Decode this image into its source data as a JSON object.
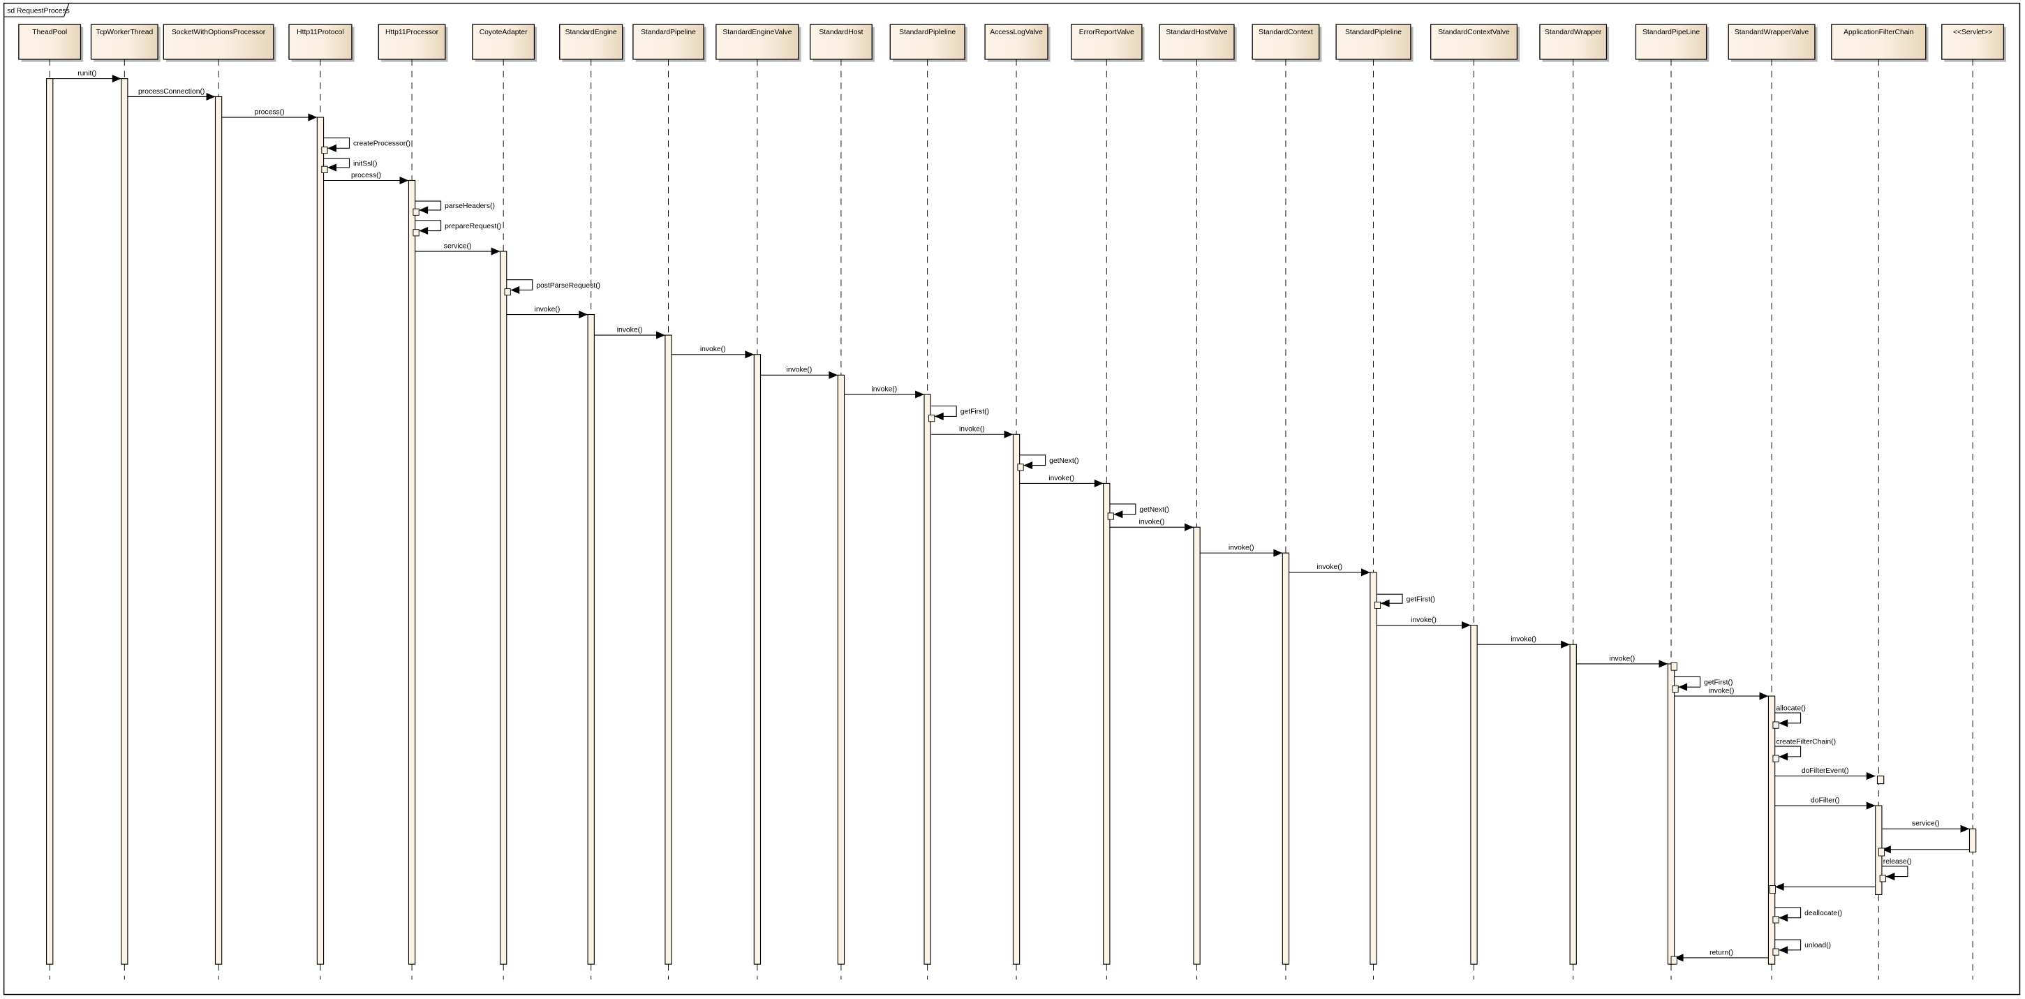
{
  "frame": {
    "title": "sd RequestProcess"
  },
  "colors": {
    "box_light": "#fcf4e8",
    "box_dark": "#e8d6bc",
    "activation": "#fbf3e6",
    "line": "#000000"
  },
  "lifelines": [
    "TheadPool",
    "TcpWorkerThread",
    "SocketWithOptionsProcessor",
    "Http11Protocol",
    "Http11Processor",
    "CoyoteAdapter",
    "StandardEngine",
    "StandardPipeline",
    "StandardEngineValve",
    "StandardHost",
    "StandardPipleline",
    "AccessLogValve",
    "ErrorReportValve",
    "StandardHostValve",
    "StandardContext",
    "StandardPipleline",
    "StandardContextValve",
    "StandardWrapper",
    "StandardPipeLine",
    "StandardWrapperValve",
    "ApplicationFilterChain",
    "<<Servlet>>"
  ],
  "messages": [
    {
      "from": 0,
      "to": 1,
      "label": "runit()"
    },
    {
      "from": 1,
      "to": 2,
      "label": "processConnection()"
    },
    {
      "from": 2,
      "to": 3,
      "label": "process()"
    },
    {
      "from": 3,
      "to": 3,
      "label": "createProcessor()"
    },
    {
      "from": 3,
      "to": 3,
      "label": "initSsl()"
    },
    {
      "from": 3,
      "to": 4,
      "label": "process()"
    },
    {
      "from": 4,
      "to": 4,
      "label": "parseHeaders()"
    },
    {
      "from": 4,
      "to": 4,
      "label": "prepareRequest()"
    },
    {
      "from": 4,
      "to": 5,
      "label": "service()"
    },
    {
      "from": 5,
      "to": 5,
      "label": "postParseRequest()"
    },
    {
      "from": 5,
      "to": 6,
      "label": "invoke()"
    },
    {
      "from": 6,
      "to": 7,
      "label": "invoke()"
    },
    {
      "from": 7,
      "to": 8,
      "label": "invoke()"
    },
    {
      "from": 8,
      "to": 9,
      "label": "invoke()"
    },
    {
      "from": 9,
      "to": 10,
      "label": "invoke()"
    },
    {
      "from": 10,
      "to": 10,
      "label": "getFirst()"
    },
    {
      "from": 10,
      "to": 11,
      "label": "invoke()"
    },
    {
      "from": 11,
      "to": 11,
      "label": "getNext()"
    },
    {
      "from": 11,
      "to": 12,
      "label": "invoke()"
    },
    {
      "from": 12,
      "to": 12,
      "label": "getNext()"
    },
    {
      "from": 12,
      "to": 13,
      "label": "invoke()"
    },
    {
      "from": 13,
      "to": 14,
      "label": "invoke()"
    },
    {
      "from": 14,
      "to": 15,
      "label": "invoke()"
    },
    {
      "from": 15,
      "to": 15,
      "label": "getFirst()"
    },
    {
      "from": 15,
      "to": 16,
      "label": "invoke()"
    },
    {
      "from": 16,
      "to": 17,
      "label": "invoke()"
    },
    {
      "from": 17,
      "to": 18,
      "label": "invoke()"
    },
    {
      "from": 18,
      "to": 18,
      "label": "getFirst()"
    },
    {
      "from": 18,
      "to": 19,
      "label": "invoke()"
    },
    {
      "from": 19,
      "to": 19,
      "label": "allocate()"
    },
    {
      "from": 19,
      "to": 19,
      "label": "createFilterChain()"
    },
    {
      "from": 19,
      "to": 20,
      "label": "doFilterEvent()"
    },
    {
      "from": 19,
      "to": 20,
      "label": "doFilter()"
    },
    {
      "from": 20,
      "to": 21,
      "label": "service()"
    },
    {
      "from": 21,
      "to": 20,
      "label": ""
    },
    {
      "from": 20,
      "to": 20,
      "label": "release()"
    },
    {
      "from": 20,
      "to": 19,
      "label": ""
    },
    {
      "from": 19,
      "to": 19,
      "label": "deallocate()"
    },
    {
      "from": 19,
      "to": 19,
      "label": "unload()"
    },
    {
      "from": 19,
      "to": 18,
      "label": "return()"
    }
  ]
}
